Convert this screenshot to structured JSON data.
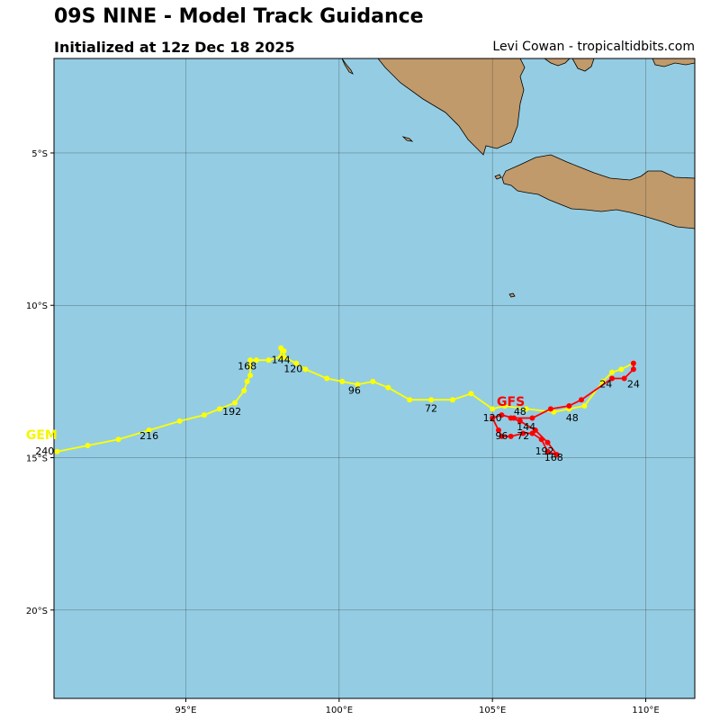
{
  "header": {
    "title": "09S NINE - Model Track Guidance",
    "subtitle": "Initialized at 12z Dec 18 2025",
    "credit": "Levi Cowan - tropicaltidbits.com"
  },
  "map": {
    "ocean_color": "#94cde3",
    "land_color": "#c09a6b",
    "coast_color": "#000000",
    "extent": {
      "lon": [
        90.7,
        111.6
      ],
      "lat": [
        -22.9,
        -1.9
      ]
    },
    "lon_ticks": [
      {
        "value": 95,
        "label": "95°E"
      },
      {
        "value": 100,
        "label": "100°E"
      },
      {
        "value": 105,
        "label": "105°E"
      },
      {
        "value": 110,
        "label": "110°E"
      }
    ],
    "lat_ticks": [
      {
        "value": -5,
        "label": "5°S"
      },
      {
        "value": -10,
        "label": "10°S"
      },
      {
        "value": -15,
        "label": "15°S"
      },
      {
        "value": -20,
        "label": "20°S"
      }
    ]
  },
  "models": [
    {
      "name": "GEM",
      "color": "#ffff00",
      "label_color": "#f5f500",
      "track": [
        [
          109.6,
          -11.9
        ],
        [
          109.2,
          -12.1
        ],
        [
          108.9,
          -12.2
        ],
        [
          108.6,
          -12.5
        ],
        [
          108.0,
          -13.3
        ],
        [
          107.5,
          -13.4
        ],
        [
          107.0,
          -13.5
        ],
        [
          106.1,
          -13.4
        ],
        [
          105.4,
          -13.3
        ],
        [
          105.0,
          -13.4
        ],
        [
          104.3,
          -12.9
        ],
        [
          103.7,
          -13.1
        ],
        [
          103.0,
          -13.1
        ],
        [
          102.3,
          -13.1
        ],
        [
          101.6,
          -12.7
        ],
        [
          101.1,
          -12.5
        ],
        [
          100.6,
          -12.6
        ],
        [
          100.1,
          -12.5
        ],
        [
          99.6,
          -12.4
        ],
        [
          98.9,
          -12.1
        ],
        [
          98.6,
          -11.9
        ],
        [
          98.2,
          -11.7
        ],
        [
          98.2,
          -11.5
        ],
        [
          98.1,
          -11.4
        ],
        [
          98.1,
          -11.7
        ],
        [
          97.7,
          -11.8
        ],
        [
          97.3,
          -11.8
        ],
        [
          97.1,
          -11.8
        ],
        [
          97.1,
          -12.0
        ],
        [
          97.1,
          -12.3
        ],
        [
          97.0,
          -12.5
        ],
        [
          96.9,
          -12.8
        ],
        [
          96.6,
          -13.2
        ],
        [
          96.1,
          -13.4
        ],
        [
          95.6,
          -13.6
        ],
        [
          94.8,
          -13.8
        ],
        [
          93.8,
          -14.1
        ],
        [
          92.8,
          -14.4
        ],
        [
          91.8,
          -14.6
        ],
        [
          90.8,
          -14.8
        ]
      ],
      "hour_labels": [
        {
          "text": "24",
          "lon": 108.7,
          "lat": -12.7
        },
        {
          "text": "48",
          "lon": 107.6,
          "lat": -13.8
        },
        {
          "text": "72",
          "lon": 103.0,
          "lat": -13.5
        },
        {
          "text": "96",
          "lon": 100.5,
          "lat": -12.9
        },
        {
          "text": "120",
          "lon": 98.5,
          "lat": -12.2
        },
        {
          "text": "144",
          "lon": 98.1,
          "lat": -11.9
        },
        {
          "text": "168",
          "lon": 97.0,
          "lat": -12.1
        },
        {
          "text": "192",
          "lon": 96.5,
          "lat": -13.6
        },
        {
          "text": "216",
          "lon": 93.8,
          "lat": -14.4
        },
        {
          "text": "240",
          "lon": 90.4,
          "lat": -14.9
        }
      ],
      "name_label": {
        "lon": 90.3,
        "lat": -14.4
      }
    },
    {
      "name": "GFS",
      "color": "#ff0000",
      "label_color": "#ff0000",
      "track": [
        [
          109.6,
          -11.9
        ],
        [
          109.6,
          -12.1
        ],
        [
          109.3,
          -12.4
        ],
        [
          108.9,
          -12.4
        ],
        [
          107.9,
          -13.1
        ],
        [
          107.5,
          -13.3
        ],
        [
          106.9,
          -13.4
        ],
        [
          106.3,
          -13.7
        ],
        [
          105.7,
          -13.7
        ],
        [
          105.3,
          -13.6
        ],
        [
          105.0,
          -13.7
        ],
        [
          105.2,
          -14.1
        ],
        [
          105.3,
          -14.3
        ],
        [
          105.6,
          -14.3
        ],
        [
          106.0,
          -14.2
        ],
        [
          106.3,
          -14.2
        ],
        [
          106.6,
          -14.4
        ],
        [
          106.8,
          -14.8
        ],
        [
          107.1,
          -14.9
        ],
        [
          106.8,
          -14.5
        ],
        [
          106.4,
          -14.1
        ],
        [
          105.9,
          -13.8
        ],
        [
          105.6,
          -13.7
        ]
      ],
      "hour_labels": [
        {
          "text": "24",
          "lon": 109.6,
          "lat": -12.7
        },
        {
          "text": "48",
          "lon": 105.9,
          "lat": -13.6
        },
        {
          "text": "72",
          "lon": 106.0,
          "lat": -14.4
        },
        {
          "text": "96",
          "lon": 105.3,
          "lat": -14.4
        },
        {
          "text": "120",
          "lon": 105.0,
          "lat": -13.8
        },
        {
          "text": "144",
          "lon": 106.1,
          "lat": -14.1
        },
        {
          "text": "168",
          "lon": 107.0,
          "lat": -15.1
        },
        {
          "text": "192",
          "lon": 106.7,
          "lat": -14.9
        }
      ],
      "name_label": {
        "lon": 105.6,
        "lat": -13.3
      }
    }
  ]
}
